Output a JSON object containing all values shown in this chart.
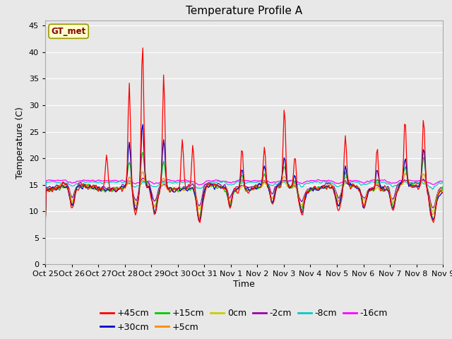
{
  "title": "Temperature Profile A",
  "xlabel": "Time",
  "ylabel": "Temperature (C)",
  "ylim": [
    0,
    46
  ],
  "yticks": [
    0,
    5,
    10,
    15,
    20,
    25,
    30,
    35,
    40,
    45
  ],
  "background_color": "#e8e8e8",
  "grid_color": "white",
  "x_labels": [
    "Oct 25",
    "Oct 26",
    "Oct 27",
    "Oct 28",
    "Oct 29",
    "Oct 30",
    "Oct 31",
    "Nov 1",
    "Nov 2",
    "Nov 3",
    "Nov 4",
    "Nov 5",
    "Nov 6",
    "Nov 7",
    "Nov 8",
    "Nov 9"
  ],
  "series": [
    {
      "label": "+45cm",
      "color": "#ff0000"
    },
    {
      "label": "+30cm",
      "color": "#0000cc"
    },
    {
      "label": "+15cm",
      "color": "#00cc00"
    },
    {
      "label": "+5cm",
      "color": "#ff8800"
    },
    {
      "label": "0cm",
      "color": "#cccc00"
    },
    {
      "label": "-2cm",
      "color": "#9900aa"
    },
    {
      "label": "-8cm",
      "color": "#00cccc"
    },
    {
      "label": "-16cm",
      "color": "#ff00ff"
    }
  ],
  "gt_met_box_color": "#ffffcc",
  "gt_met_border_color": "#999900",
  "gt_met_text_color": "#880000",
  "legend_fontsize": 9,
  "title_fontsize": 11,
  "tick_fontsize": 8
}
